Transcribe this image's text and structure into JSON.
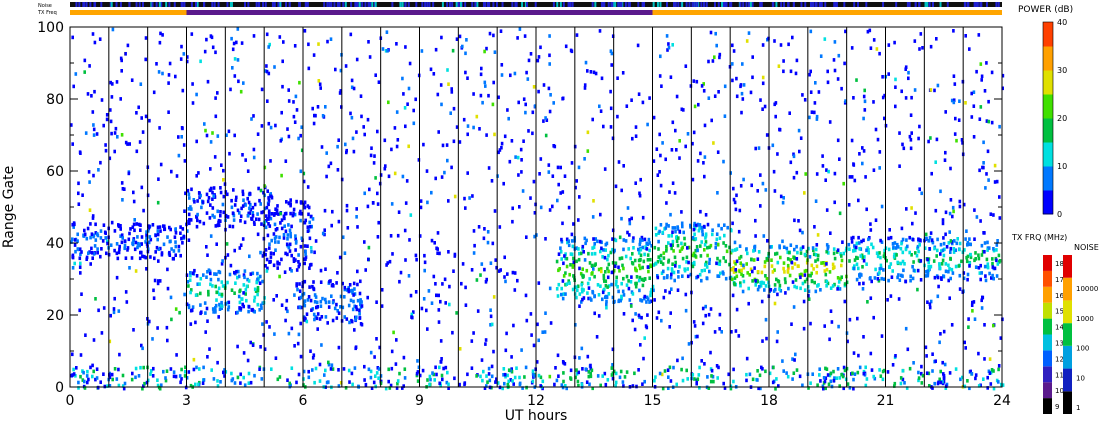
{
  "chart_data": {
    "type": "heatmap",
    "xlabel": "UT hours",
    "ylabel": "Range Gate",
    "xlim": [
      0,
      24
    ],
    "ylim": [
      0,
      100
    ],
    "x_ticks": [
      "0",
      "3",
      "6",
      "9",
      "12",
      "15",
      "18",
      "21",
      "24"
    ],
    "y_ticks": [
      "0",
      "20",
      "40",
      "60",
      "80",
      "100"
    ],
    "vertical_lines_hours": [
      1,
      2,
      3,
      4,
      5,
      6,
      7,
      8,
      9,
      10,
      11,
      12,
      13,
      14,
      15,
      16,
      17,
      18,
      19,
      20,
      21,
      22,
      23
    ],
    "top_bar_labels": {
      "noise": "Noise",
      "txfreq": "TX Freq"
    },
    "tx_freq_bar": [
      {
        "from": 0,
        "to": 3,
        "color": "#ffa500"
      },
      {
        "from": 3,
        "to": 15,
        "color": "#5a1a8c"
      },
      {
        "from": 15,
        "to": 24,
        "color": "#ffa500"
      }
    ],
    "echo_regions": [
      {
        "t0": 0.0,
        "t1": 3.0,
        "g0": 36,
        "g1": 46,
        "power": 6
      },
      {
        "t0": 3.0,
        "t1": 5.0,
        "g0": 21,
        "g1": 33,
        "power": 14
      },
      {
        "t0": 3.0,
        "t1": 5.2,
        "g0": 45,
        "g1": 56,
        "power": 5
      },
      {
        "t0": 5.0,
        "t1": 6.2,
        "g0": 33,
        "g1": 52,
        "power": 5
      },
      {
        "t0": 5.8,
        "t1": 7.5,
        "g0": 18,
        "g1": 30,
        "power": 6
      },
      {
        "t0": 12.5,
        "t1": 15.0,
        "g0": 24,
        "g1": 42,
        "power": 18
      },
      {
        "t0": 15.0,
        "t1": 17.0,
        "g0": 30,
        "g1": 46,
        "power": 18
      },
      {
        "t0": 17.0,
        "t1": 20.0,
        "g0": 27,
        "g1": 40,
        "power": 24
      },
      {
        "t0": 20.0,
        "t1": 24.0,
        "g0": 30,
        "g1": 42,
        "power": 14
      }
    ],
    "power_colorbar": {
      "title": "POWER (dB)",
      "min": 0,
      "max": 40,
      "ticks": [
        "0",
        "10",
        "20",
        "30",
        "40"
      ]
    },
    "txfreq_colorbar": {
      "title": "TX FRQ (MHz)",
      "ticks": [
        "9",
        "10",
        "11",
        "12",
        "13",
        "14",
        "15",
        "16",
        "17",
        "18"
      ]
    },
    "noise_colorbar": {
      "title": "NOISE",
      "ticks": [
        "1",
        "10",
        "100",
        "1000",
        "10000"
      ]
    }
  }
}
